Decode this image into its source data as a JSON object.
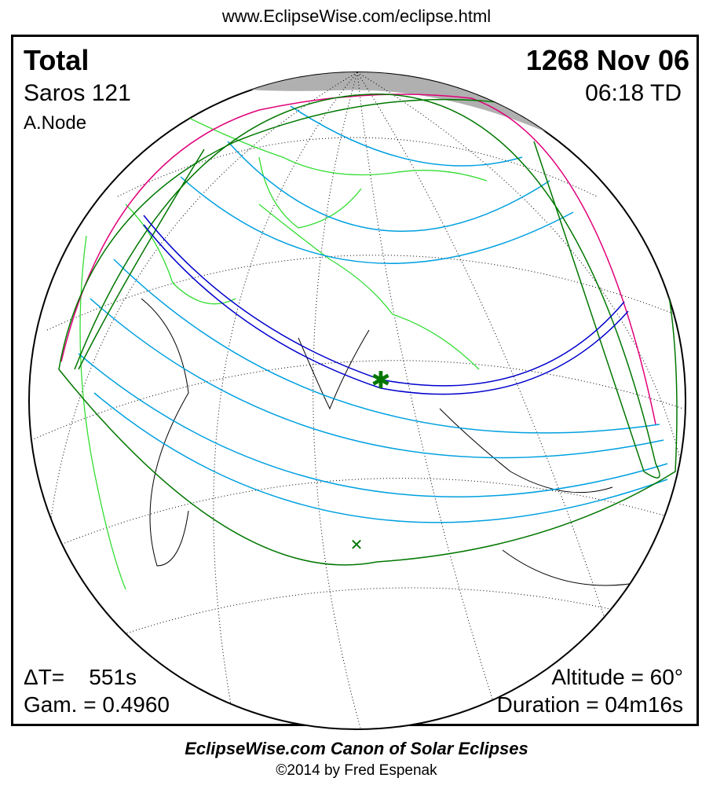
{
  "header": {
    "url": "www.EclipseWise.com/eclipse.html"
  },
  "eclipse": {
    "type": "Total",
    "date": "1268 Nov 06",
    "saros": "Saros 121",
    "time": "06:18 TD",
    "node": "A.Node",
    "delta_t": "ΔT=    551s",
    "gamma": "Gam. = 0.4960",
    "altitude": "Altitude = 60°",
    "duration": "Duration = 04m16s"
  },
  "footer": {
    "title": "EclipseWise.com Canon of Solar Eclipses",
    "copyright": "©2014 by Fred Espenak"
  },
  "colors": {
    "central_path": "#0000cc",
    "penumbra_lines": "#00a0e0",
    "limit_lines": "#007700",
    "rise_set": "#e0007a",
    "borders": "#33dd33",
    "night": "#b0b0b0"
  },
  "markers": {
    "greatest_eclipse": "star-icon",
    "sub_solar_point": "x-icon"
  }
}
